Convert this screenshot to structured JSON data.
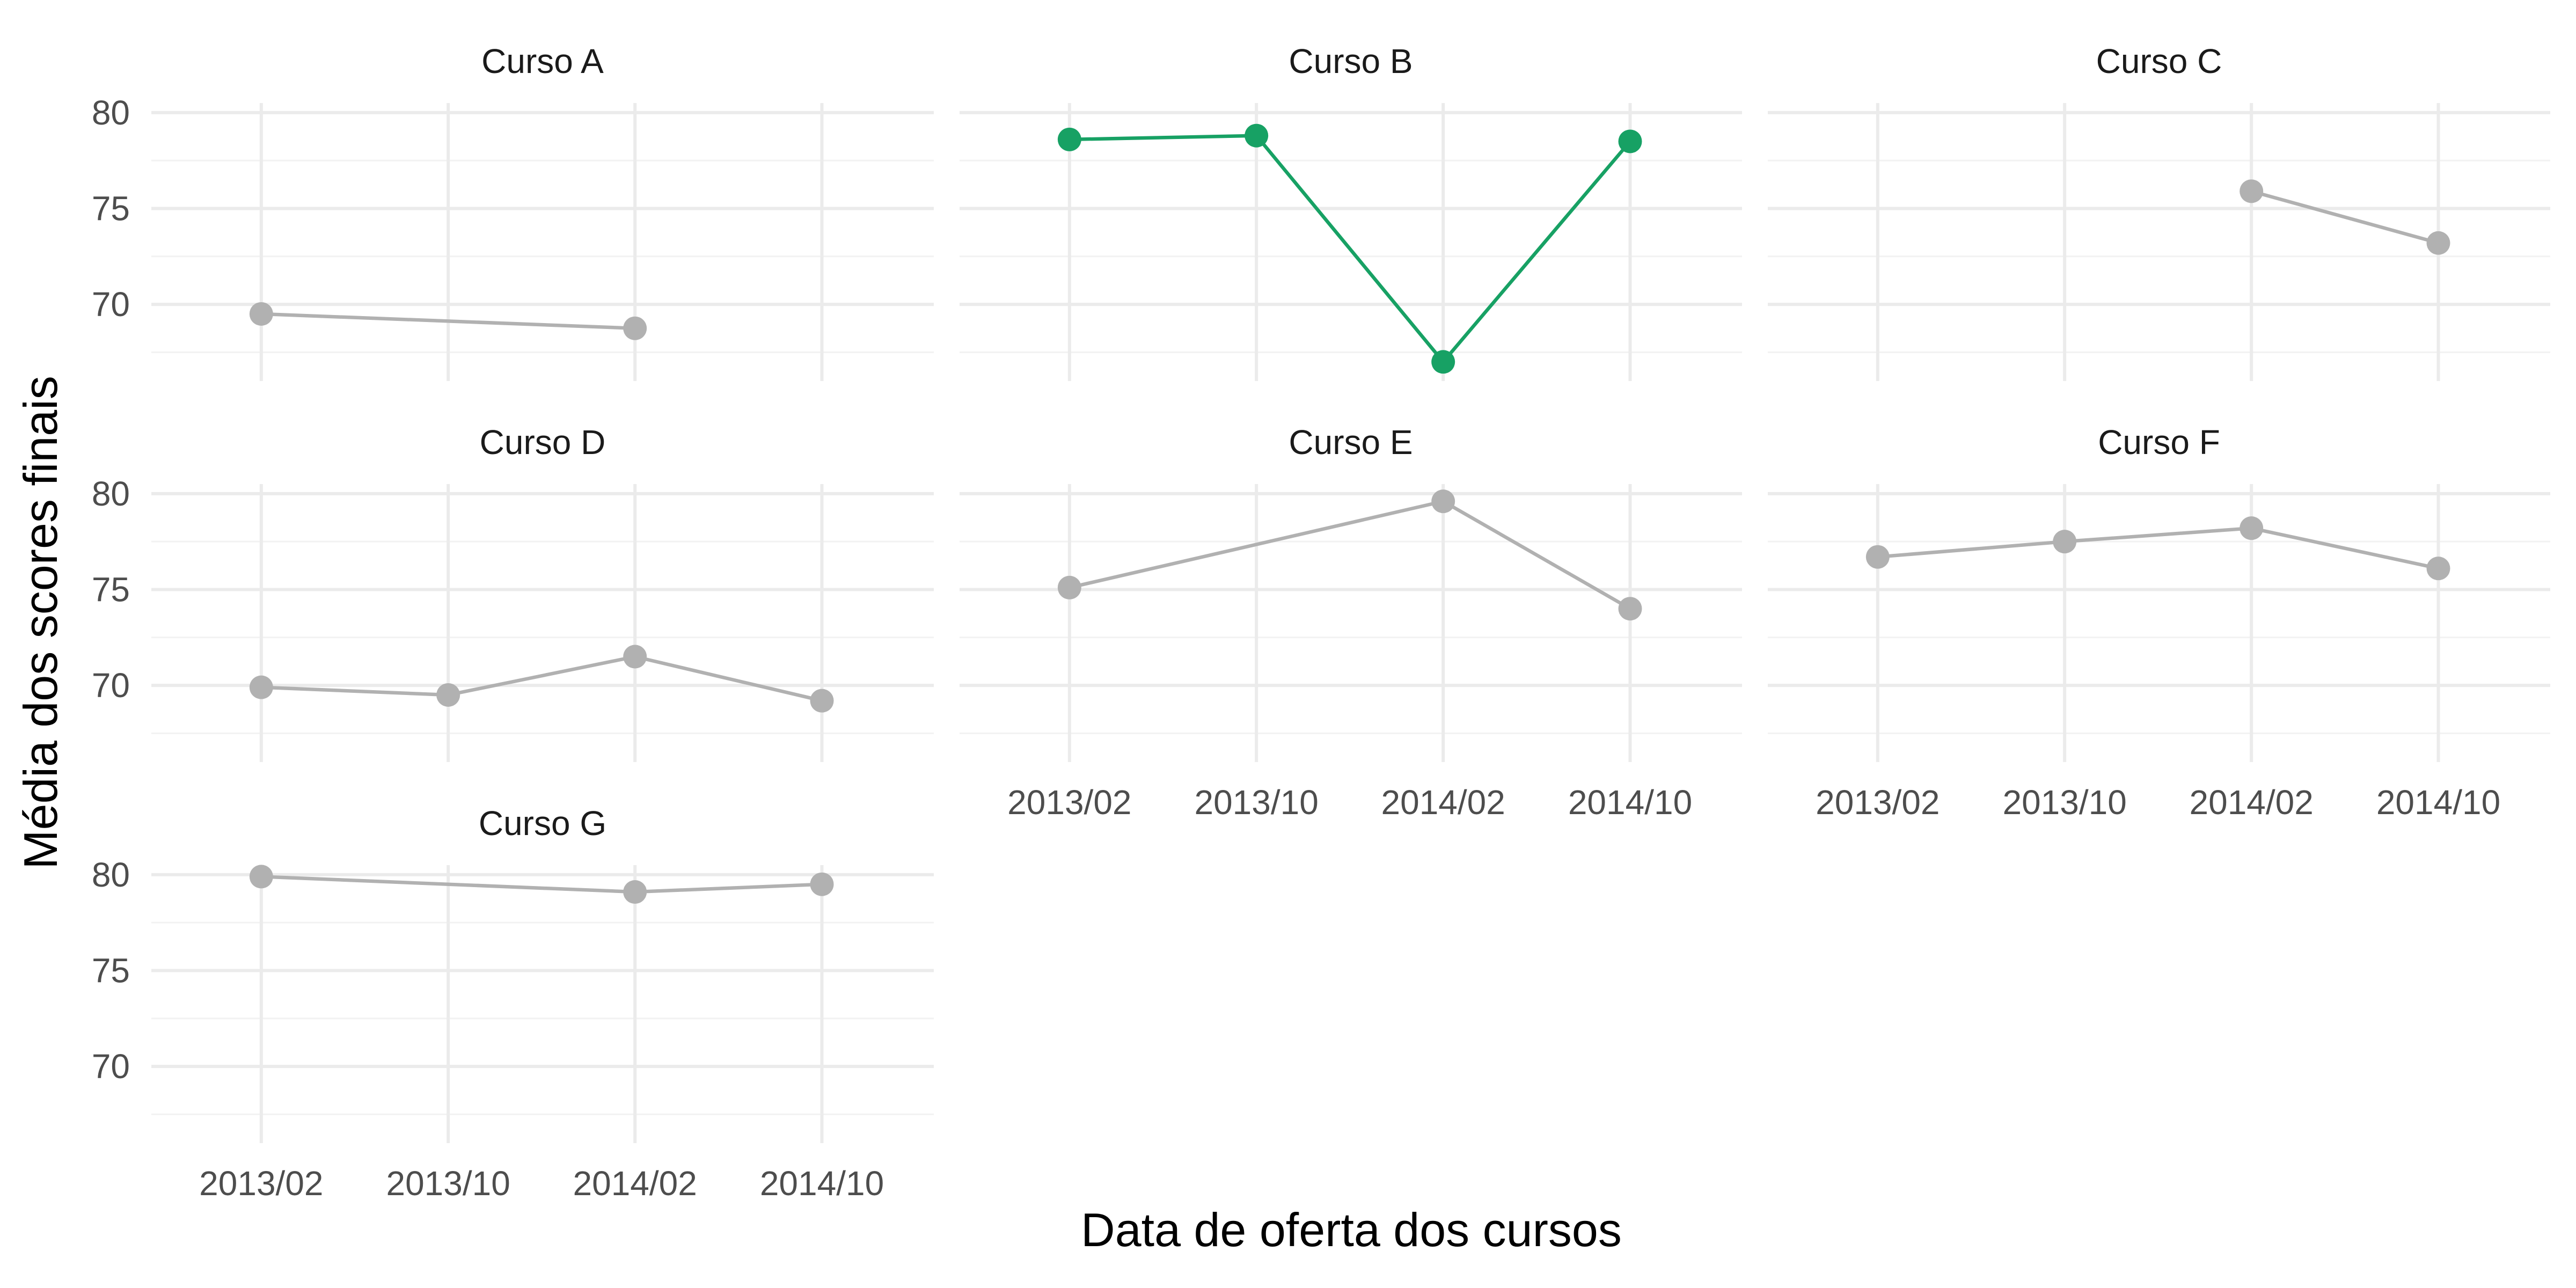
{
  "colors": {
    "highlight": "#17a164",
    "muted": "#b1b1b1",
    "grid_major": "#ebebeb",
    "grid_minor": "#f2f2f2",
    "tick_text": "#4d4d4d",
    "title_text": "#1a1a1a",
    "background": "#ffffff"
  },
  "chart_data": {
    "type": "line",
    "xlabel": "Data de oferta dos cursos",
    "ylabel": "Média dos scores finais",
    "x_categories": [
      "2013/02",
      "2013/10",
      "2014/02",
      "2014/10"
    ],
    "y_ticks": [
      70,
      75,
      80
    ],
    "ylim": [
      66,
      80.5
    ],
    "grid": true,
    "legend": "none",
    "facets": [
      {
        "name": "Curso A",
        "highlight": false,
        "points": [
          {
            "x": "2013/02",
            "y": 69.5
          },
          {
            "x": "2014/02",
            "y": 68.75
          }
        ]
      },
      {
        "name": "Curso B",
        "highlight": true,
        "points": [
          {
            "x": "2013/02",
            "y": 78.6
          },
          {
            "x": "2013/10",
            "y": 78.8
          },
          {
            "x": "2014/02",
            "y": 67.0
          },
          {
            "x": "2014/10",
            "y": 78.5
          }
        ]
      },
      {
        "name": "Curso C",
        "highlight": false,
        "points": [
          {
            "x": "2014/02",
            "y": 75.9
          },
          {
            "x": "2014/10",
            "y": 73.2
          }
        ]
      },
      {
        "name": "Curso D",
        "highlight": false,
        "points": [
          {
            "x": "2013/02",
            "y": 69.9
          },
          {
            "x": "2013/10",
            "y": 69.5
          },
          {
            "x": "2014/02",
            "y": 71.5
          },
          {
            "x": "2014/10",
            "y": 69.2
          }
        ]
      },
      {
        "name": "Curso E",
        "highlight": false,
        "points": [
          {
            "x": "2013/02",
            "y": 75.1
          },
          {
            "x": "2014/02",
            "y": 79.6
          },
          {
            "x": "2014/10",
            "y": 74.0
          }
        ]
      },
      {
        "name": "Curso F",
        "highlight": false,
        "points": [
          {
            "x": "2013/02",
            "y": 76.7
          },
          {
            "x": "2013/10",
            "y": 77.5
          },
          {
            "x": "2014/02",
            "y": 78.2
          },
          {
            "x": "2014/10",
            "y": 76.1
          }
        ]
      },
      {
        "name": "Curso G",
        "highlight": false,
        "points": [
          {
            "x": "2013/02",
            "y": 79.9
          },
          {
            "x": "2014/02",
            "y": 79.1
          },
          {
            "x": "2014/10",
            "y": 79.5
          }
        ]
      }
    ]
  }
}
